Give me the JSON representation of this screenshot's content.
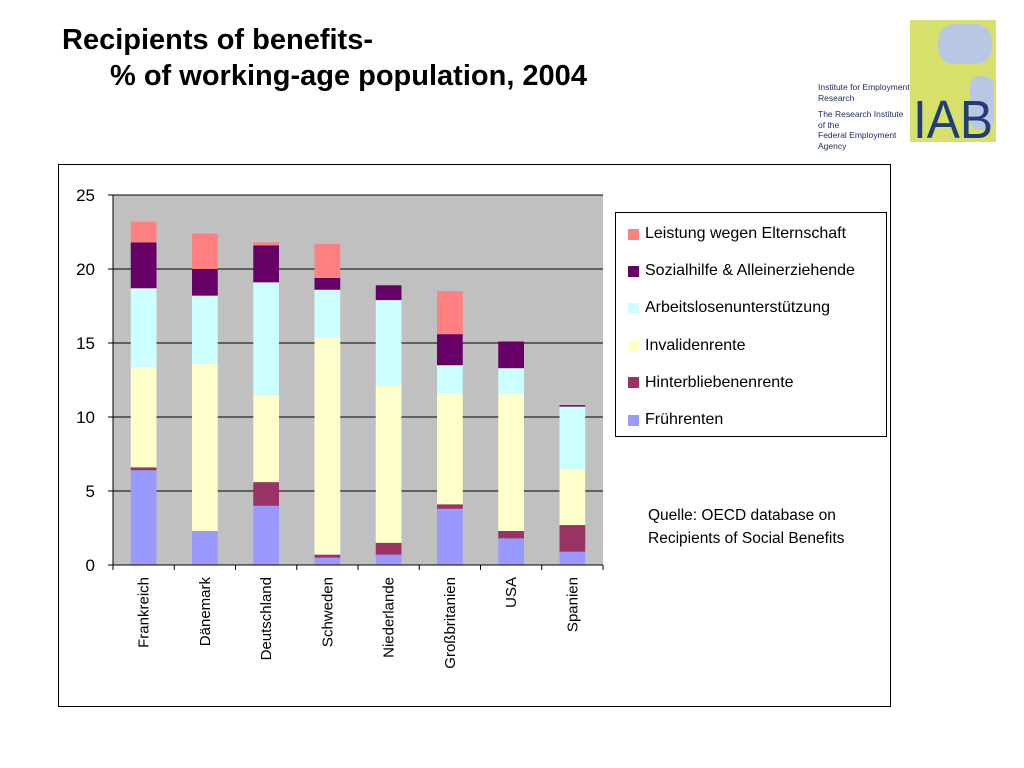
{
  "slide": {
    "title_line1": "Recipients of benefits-",
    "title_line2": "% of working-age population, 2004",
    "source": "Quelle: OECD database on Recipients of Social Benefits"
  },
  "logo": {
    "lettering": "IAB",
    "line1": "Institute for Employment",
    "line2": "Research",
    "line3": "The Research Institute of the",
    "line4": "Federal Employment Agency",
    "colors": {
      "lime": "#d6e06a",
      "blue": "#233d7a",
      "light": "#b8c7e2"
    }
  },
  "chart_data": {
    "type": "bar",
    "stacked": true,
    "categories": [
      "Frankreich",
      "Dänemark",
      "Deutschland",
      "Schweden",
      "Niederlande",
      "Großbritanien",
      "USA",
      "Spanien"
    ],
    "ylim": [
      0,
      25
    ],
    "yticks": [
      0,
      5,
      10,
      15,
      20,
      25
    ],
    "grid": true,
    "plot_background": "#c0c0c0",
    "legend_position": "right",
    "series": [
      {
        "name": "Frührenten",
        "color": "#9999ff",
        "values": [
          6.4,
          2.3,
          4.0,
          0.5,
          0.7,
          3.8,
          1.8,
          0.9
        ]
      },
      {
        "name": "Hinterbliebenenrente",
        "color": "#993366",
        "values": [
          0.2,
          0.0,
          1.6,
          0.2,
          0.8,
          0.3,
          0.5,
          1.8
        ]
      },
      {
        "name": "Invalidenrente",
        "color": "#ffffcc",
        "values": [
          6.8,
          11.3,
          5.9,
          14.7,
          10.6,
          7.5,
          9.3,
          3.8
        ]
      },
      {
        "name": "Arbeitslosenunterstützung",
        "color": "#ccffff",
        "values": [
          5.3,
          4.6,
          7.6,
          3.2,
          5.8,
          1.9,
          1.7,
          4.2
        ]
      },
      {
        "name": "Sozialhilfe & Alleinerziehende",
        "color": "#660066",
        "values": [
          3.1,
          1.8,
          2.5,
          0.8,
          1.0,
          2.1,
          1.8,
          0.1
        ]
      },
      {
        "name": "Leistung wegen Elternschaft",
        "color": "#ff8080",
        "values": [
          1.4,
          2.4,
          0.2,
          2.3,
          0.0,
          2.9,
          0.0,
          0.0
        ]
      }
    ]
  }
}
